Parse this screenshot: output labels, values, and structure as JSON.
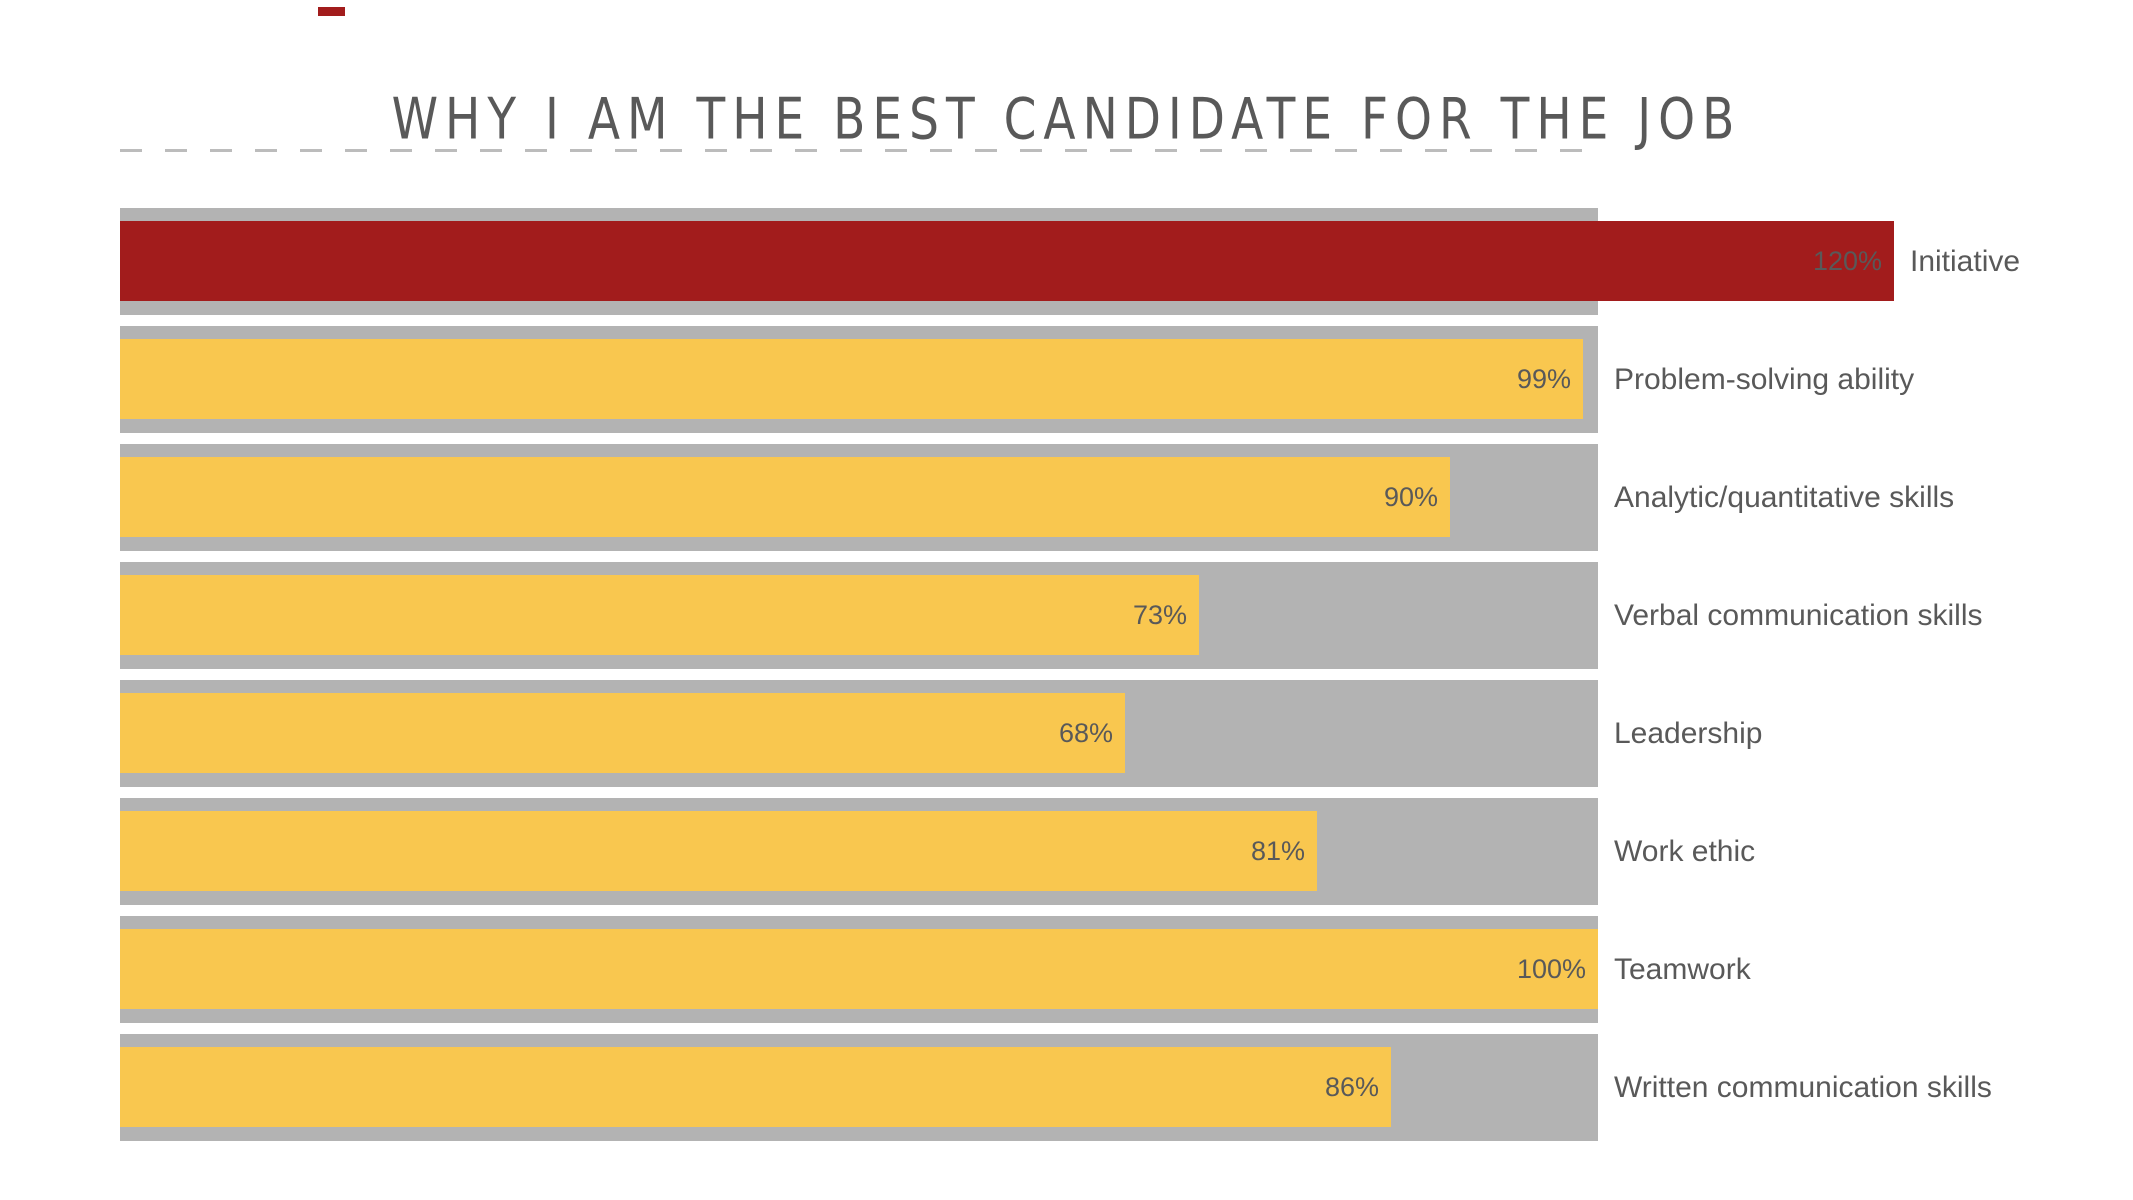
{
  "chart_data": {
    "type": "bar",
    "orientation": "horizontal",
    "title": "WHY I AM THE BEST CANDIDATE FOR THE JOB",
    "categories": [
      "Initiative",
      "Problem-solving ability",
      "Analytic/quantitative skills",
      "Verbal communication skills",
      "Leadership",
      "Work ethic",
      "Teamwork",
      "Written communication skills"
    ],
    "values": [
      120,
      99,
      90,
      73,
      68,
      81,
      100,
      86
    ],
    "value_labels": [
      "120%",
      "99%",
      "90%",
      "73%",
      "68%",
      "81%",
      "100%",
      "86%"
    ],
    "xlim": [
      0,
      100
    ],
    "track_represents_pct": 100,
    "grid": "off",
    "legend": "none",
    "bar_colors": [
      "#a21c1c",
      "#f9c74f",
      "#f9c74f",
      "#f9c74f",
      "#f9c74f",
      "#f9c74f",
      "#f9c74f",
      "#f9c74f"
    ],
    "track_color": "#b3b3b3",
    "value_label_color": "#595959",
    "category_label_color": "#595959",
    "title_color": "#595959"
  },
  "decorations": {
    "red_dash_color": "#a21c1c",
    "dashed_line_color": "#bcbcbc"
  }
}
